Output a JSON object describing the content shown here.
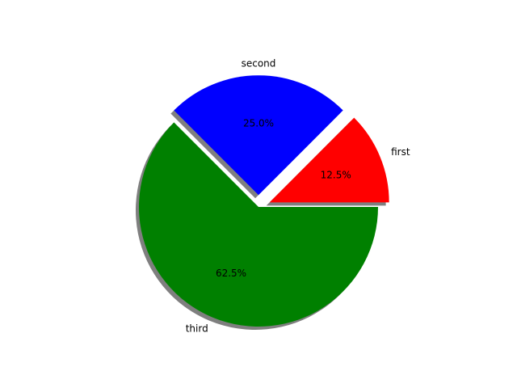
{
  "chart_data": {
    "type": "pie",
    "categories": [
      "first",
      "second",
      "third"
    ],
    "values": [
      12.5,
      25.0,
      62.5
    ],
    "percent_labels": [
      "12.5%",
      "25.0%",
      "62.5%"
    ],
    "colors": [
      "#ff0000",
      "#0000ff",
      "#008000"
    ],
    "explode": [
      0.1,
      0.1,
      0.0
    ],
    "shadow": true,
    "start_angle_deg": 0,
    "direction": "counterclockwise"
  }
}
